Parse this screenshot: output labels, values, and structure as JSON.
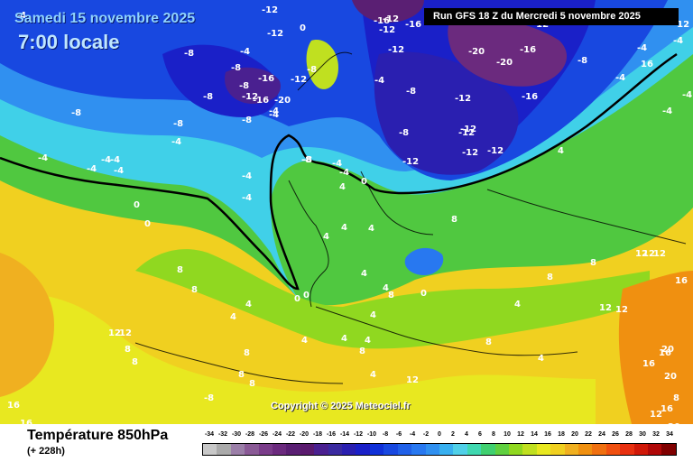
{
  "header": {
    "date": "Samedi 15 novembre 2025",
    "time": "7:00 locale",
    "run": "Run GFS 18 Z du Mercredi 5 novembre 2025"
  },
  "copyright": "Copyright © 2025 Meteociel.fr",
  "footer": {
    "variable": "Température 850hPa",
    "lead": "(+ 228h)"
  },
  "legend": {
    "ticks": [
      "-34",
      "-32",
      "-30",
      "-28",
      "-26",
      "-24",
      "-22",
      "-20",
      "-18",
      "-16",
      "-14",
      "-12",
      "-10",
      "-8",
      "-6",
      "-4",
      "-2",
      "0",
      "2",
      "4",
      "6",
      "8",
      "10",
      "12",
      "14",
      "16",
      "18",
      "20",
      "22",
      "24",
      "26",
      "28",
      "30",
      "32",
      "34"
    ],
    "colors": [
      "#c8c8c8",
      "#aaaaaa",
      "#9b7fa8",
      "#8a5a96",
      "#7a3c8a",
      "#6b2a7e",
      "#5a1f73",
      "#5a1a6e",
      "#4a2090",
      "#3a2aa0",
      "#2a1fb0",
      "#1a20c8",
      "#1030d8",
      "#1848e0",
      "#2060e8",
      "#2878f0",
      "#3090f0",
      "#38b0f0",
      "#50d0e8",
      "#40d8b0",
      "#40d070",
      "#60d040",
      "#90d820",
      "#c0e020",
      "#e8e820",
      "#f0d020",
      "#f0b020",
      "#f09010",
      "#f07010",
      "#f05010",
      "#e83010",
      "#d01808",
      "#b00808",
      "#800000"
    ]
  },
  "map_labels": [
    {
      "v": "-4",
      "c": "white"
    },
    {
      "v": "-12",
      "c": "white"
    },
    {
      "v": "-20",
      "c": "white"
    },
    {
      "v": "-16",
      "c": "white"
    },
    {
      "v": "-16",
      "c": "white"
    },
    {
      "v": "-8",
      "c": "white"
    },
    {
      "v": "-12",
      "c": "white"
    },
    {
      "v": "0",
      "c": "white"
    },
    {
      "v": "-4",
      "c": "white"
    },
    {
      "v": "-12",
      "c": "white"
    },
    {
      "v": "-20",
      "c": "white"
    },
    {
      "v": "-20",
      "c": "white"
    },
    {
      "v": "-16",
      "c": "white"
    },
    {
      "v": "-12",
      "c": "white"
    },
    {
      "v": "-8",
      "c": "white"
    },
    {
      "v": "-4",
      "c": "white"
    },
    {
      "v": "-8",
      "c": "white"
    },
    {
      "v": "-8",
      "c": "white"
    },
    {
      "v": "-8",
      "c": "white"
    },
    {
      "v": "-16",
      "c": "white"
    },
    {
      "v": "-12",
      "c": "white"
    },
    {
      "v": "-16",
      "c": "white"
    },
    {
      "v": "-20",
      "c": "white"
    },
    {
      "v": "-12",
      "c": "white"
    },
    {
      "v": "-8",
      "c": "white"
    },
    {
      "v": "-4",
      "c": "white"
    },
    {
      "v": "-4",
      "c": "white"
    },
    {
      "v": "-8",
      "c": "white"
    },
    {
      "v": "-12",
      "c": "white"
    },
    {
      "v": "-12",
      "c": "white"
    },
    {
      "v": "-12",
      "c": "white"
    },
    {
      "v": "-16",
      "c": "white"
    },
    {
      "v": "-4",
      "c": "white"
    },
    {
      "v": "-8",
      "c": "white"
    },
    {
      "v": "-4",
      "c": "white"
    },
    {
      "v": "-12",
      "c": "white"
    },
    {
      "v": "-8",
      "c": "white"
    },
    {
      "v": "-12",
      "c": "white"
    },
    {
      "v": "-8",
      "c": "white"
    },
    {
      "v": "-12",
      "c": "white"
    },
    {
      "v": "-4",
      "c": "white"
    },
    {
      "v": "-8",
      "c": "white"
    },
    {
      "v": "-4",
      "c": "white"
    },
    {
      "v": "-4",
      "c": "white"
    },
    {
      "v": "-4",
      "c": "white"
    },
    {
      "v": "-4",
      "c": "white"
    },
    {
      "v": "-4",
      "c": "white"
    },
    {
      "v": "0",
      "c": "white"
    },
    {
      "v": "0",
      "c": "white"
    },
    {
      "v": "-4",
      "c": "white"
    },
    {
      "v": "-4",
      "c": "white"
    },
    {
      "v": "-8",
      "c": "white"
    },
    {
      "v": "-4",
      "c": "white"
    },
    {
      "v": "0",
      "c": "white"
    },
    {
      "v": "4",
      "c": "white"
    },
    {
      "v": "-12",
      "c": "white"
    },
    {
      "v": "-12",
      "c": "white"
    },
    {
      "v": "4",
      "c": "white"
    },
    {
      "v": "4",
      "c": "white"
    },
    {
      "v": "8",
      "c": "white"
    },
    {
      "v": "4",
      "c": "white"
    },
    {
      "v": "0",
      "c": "white"
    },
    {
      "v": "0",
      "c": "white"
    },
    {
      "v": "8",
      "c": "white"
    },
    {
      "v": "8",
      "c": "white"
    },
    {
      "v": "4",
      "c": "white"
    },
    {
      "v": "4",
      "c": "white"
    },
    {
      "v": "0",
      "c": "white"
    },
    {
      "v": "4",
      "c": "white"
    },
    {
      "v": "4",
      "c": "white"
    },
    {
      "v": "4",
      "c": "white"
    },
    {
      "v": "8",
      "c": "white"
    },
    {
      "v": "4",
      "c": "white"
    },
    {
      "v": "12",
      "c": "white"
    },
    {
      "v": "12",
      "c": "white"
    },
    {
      "v": "8",
      "c": "white"
    },
    {
      "v": "8",
      "c": "white"
    },
    {
      "v": "4",
      "c": "white"
    },
    {
      "v": "4",
      "c": "white"
    },
    {
      "v": "8",
      "c": "white"
    },
    {
      "v": "8",
      "c": "white"
    },
    {
      "v": "8",
      "c": "white"
    },
    {
      "v": "-8",
      "c": "white"
    },
    {
      "v": "12",
      "c": "white"
    },
    {
      "v": "8",
      "c": "white"
    },
    {
      "v": "4",
      "c": "white"
    },
    {
      "v": "8",
      "c": "white"
    },
    {
      "v": "12",
      "c": "white"
    },
    {
      "v": "12",
      "c": "white"
    },
    {
      "v": "12",
      "c": "white"
    },
    {
      "v": "16",
      "c": "white"
    },
    {
      "v": "16",
      "c": "white"
    },
    {
      "v": "16",
      "c": "white"
    },
    {
      "v": "20",
      "c": "white"
    },
    {
      "v": "20",
      "c": "white"
    },
    {
      "v": "20",
      "c": "white"
    },
    {
      "v": "16",
      "c": "white"
    },
    {
      "v": "16",
      "c": "white"
    },
    {
      "v": "12",
      "c": "white"
    },
    {
      "v": "4",
      "c": "white"
    },
    {
      "v": "8",
      "c": "white"
    },
    {
      "v": "12",
      "c": "white"
    },
    {
      "v": "16",
      "c": "white"
    },
    {
      "v": "16",
      "c": "white"
    },
    {
      "v": "-4",
      "c": "white"
    },
    {
      "v": "-4",
      "c": "white"
    },
    {
      "v": "-4",
      "c": "white"
    },
    {
      "v": "-4",
      "c": "white"
    },
    {
      "v": "-8",
      "c": "white"
    },
    {
      "v": "-12",
      "c": "white"
    },
    {
      "v": "4",
      "c": "white"
    },
    {
      "v": "8",
      "c": "white"
    },
    {
      "v": "12",
      "c": "white"
    },
    {
      "v": "8",
      "c": "white"
    },
    {
      "v": "4",
      "c": "white"
    }
  ]
}
